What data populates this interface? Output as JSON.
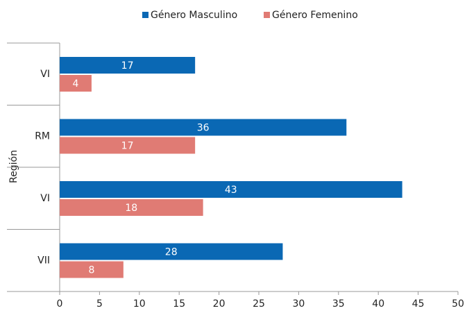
{
  "chart_data": {
    "type": "barh",
    "ylabel": "Región",
    "categories": [
      "VI",
      "RM",
      "VI",
      "VII"
    ],
    "series": [
      {
        "name": "Género Masculino",
        "color": "#0a68b4",
        "values": [
          17,
          36,
          43,
          28
        ]
      },
      {
        "name": "Género Femenino",
        "color": "#e07b74",
        "values": [
          4,
          17,
          18,
          8
        ]
      }
    ],
    "xlim": [
      0,
      50
    ],
    "xticks": [
      0,
      5,
      10,
      15,
      20,
      25,
      30,
      35,
      40,
      45,
      50
    ],
    "legend": "top"
  }
}
